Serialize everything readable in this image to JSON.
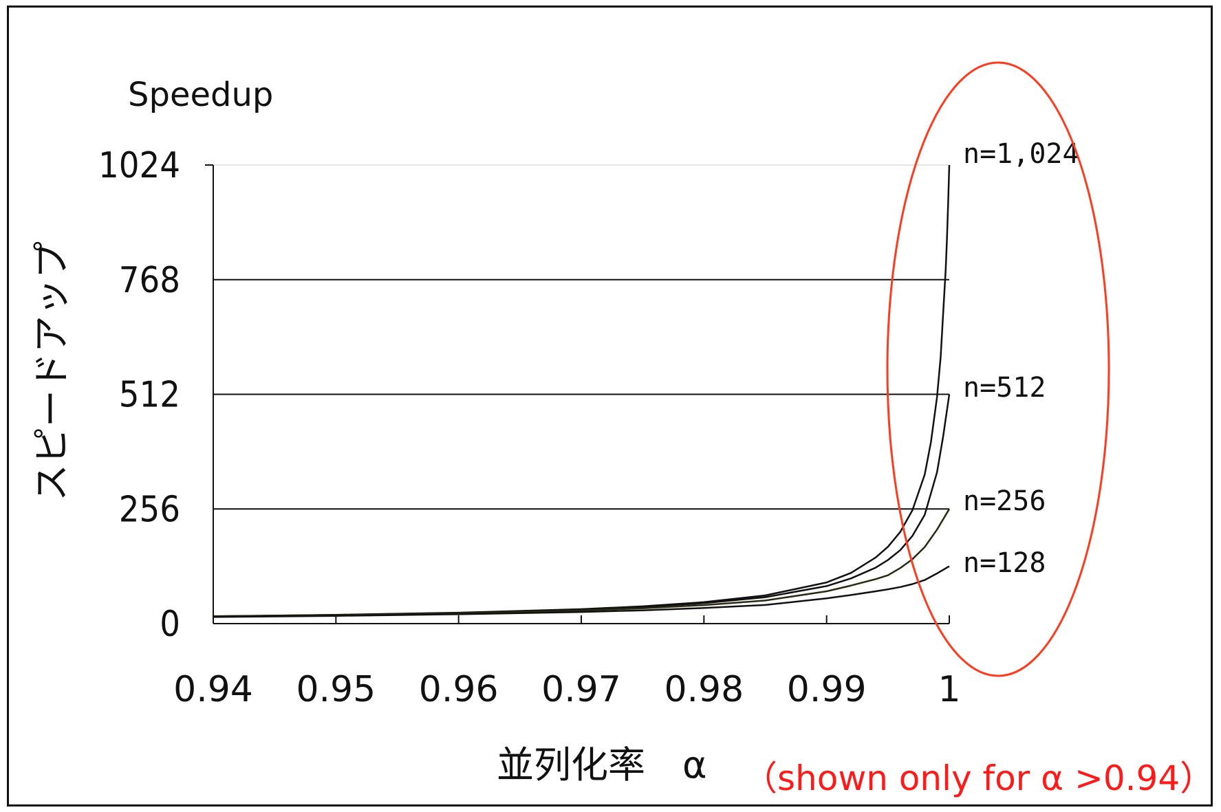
{
  "chart_data": {
    "type": "line",
    "ylabel_en": "Speedup",
    "ylabel_jp": "スピードアップ",
    "xlabel": "並列化率　α",
    "note": "（shown only for α >0.94）",
    "xlim": [
      0.94,
      1.0
    ],
    "ylim": [
      0,
      1024
    ],
    "x_ticks": [
      0.94,
      0.95,
      0.96,
      0.97,
      0.98,
      0.99,
      1
    ],
    "x_tick_labels": [
      "0.94",
      "0.95",
      "0.96",
      "0.97",
      "0.98",
      "0.99",
      "1"
    ],
    "y_ticks": [
      0,
      256,
      512,
      768,
      1024
    ],
    "y_tick_labels": [
      "0",
      "256",
      "512",
      "768",
      "1024"
    ],
    "grid": "horizontal",
    "series": [
      {
        "name": "n=1,024",
        "n": 1024,
        "x": [
          0.94,
          0.95,
          0.96,
          0.97,
          0.975,
          0.98,
          0.985,
          0.99,
          0.992,
          0.994,
          0.995,
          0.996,
          0.997,
          0.998,
          0.9985,
          0.999,
          0.9993,
          0.9995,
          0.9997,
          0.9998,
          0.9999,
          1.0
        ],
        "y": [
          16.4,
          19.6,
          24.4,
          32.3,
          38.6,
          47.9,
          63.0,
          91.9,
          113.3,
          147.7,
          171.5,
          204.6,
          253.5,
          333.0,
          405.0,
          506.0,
          596.0,
          693.0,
          788.0,
          850.0,
          931.0,
          1024.0
        ]
      },
      {
        "name": "n=512",
        "n": 512,
        "x": [
          0.94,
          0.95,
          0.96,
          0.97,
          0.975,
          0.98,
          0.985,
          0.99,
          0.992,
          0.994,
          0.995,
          0.996,
          0.997,
          0.998,
          0.999,
          0.9995,
          1.0
        ],
        "y": [
          16.2,
          19.3,
          23.9,
          31.3,
          37.1,
          45.6,
          58.9,
          83.8,
          101.0,
          125.0,
          142.0,
          164.0,
          196.0,
          243.0,
          338.0,
          418.0,
          512.0
        ]
      },
      {
        "name": "n=256",
        "n": 256,
        "x": [
          0.94,
          0.95,
          0.96,
          0.97,
          0.975,
          0.98,
          0.985,
          0.99,
          0.992,
          0.994,
          0.995,
          0.996,
          0.997,
          0.998,
          0.999,
          1.0
        ],
        "y": [
          15.7,
          18.6,
          22.9,
          29.1,
          34.2,
          41.3,
          51.6,
          72.1,
          85.1,
          99.3,
          108.0,
          124.0,
          144.0,
          171.0,
          210.0,
          256.0
        ]
      },
      {
        "name": "n=128",
        "n": 128,
        "x": [
          0.94,
          0.95,
          0.96,
          0.97,
          0.975,
          0.98,
          0.985,
          0.99,
          0.992,
          0.994,
          0.995,
          0.996,
          0.997,
          0.998,
          0.999,
          1.0
        ],
        "y": [
          14.8,
          17.3,
          20.9,
          25.9,
          29.7,
          34.9,
          41.6,
          56.3,
          63.9,
          72.2,
          76.6,
          81.6,
          88.2,
          97.3,
          112.0,
          128.0
        ]
      }
    ],
    "colors": {
      "line": "#111111",
      "line_256": "#2a2a12",
      "grid": "#111111",
      "highlight": "#ff3b1f",
      "note": "#ff1a1a"
    }
  }
}
